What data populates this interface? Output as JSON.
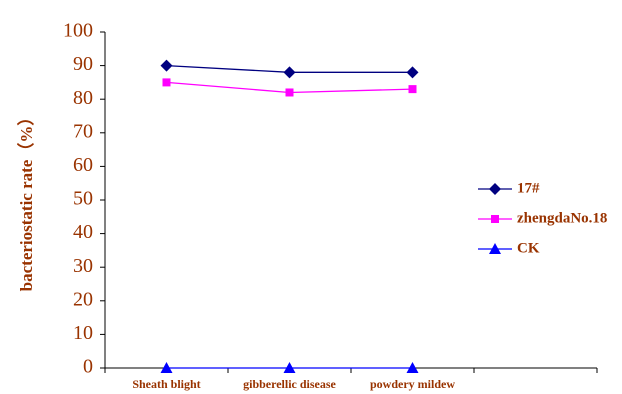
{
  "chart_data": {
    "type": "line",
    "y_label": "bacteriostatic rate（%）",
    "categories": [
      "Sheath blight",
      "gibberellic disease",
      "powdery mildew",
      null
    ],
    "series": [
      {
        "name": "17#",
        "color": "#000080",
        "marker": "diamond",
        "values": [
          90,
          88,
          88,
          null
        ]
      },
      {
        "name": "zhengdaNo.18",
        "color": "#ff00ff",
        "marker": "square",
        "values": [
          85,
          82,
          83,
          null
        ]
      },
      {
        "name": "CK",
        "color": "#0000ff",
        "marker": "triangle",
        "values": [
          0,
          0,
          0,
          null
        ]
      }
    ],
    "ylim": [
      0,
      100
    ],
    "yticks": [
      0,
      10,
      20,
      30,
      40,
      50,
      60,
      70,
      80,
      90,
      100
    ],
    "legend": "right"
  }
}
